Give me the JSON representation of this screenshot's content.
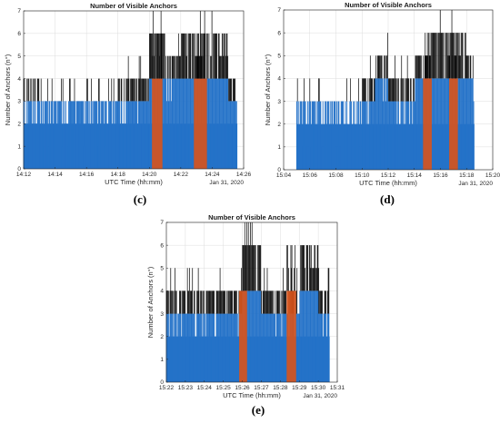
{
  "chart_data": [
    {
      "type": "area",
      "panel_label": "(c)",
      "title": "Number of Visible Anchors",
      "xlabel": "UTC Time (hh:mm)",
      "ylabel": "Number of Anchors (n°)",
      "date_label": "Jan 31, 2020",
      "x_ticks": [
        "14:12",
        "14:14",
        "14:16",
        "14:18",
        "14:20",
        "14:22",
        "14:24",
        "14:26"
      ],
      "y_ticks": [
        "0",
        "1",
        "2",
        "3",
        "4",
        "5",
        "6",
        "7"
      ],
      "ylim": [
        0,
        7
      ],
      "grid": true,
      "series_colors": {
        "base": "#2472c8",
        "highlight": "#d95319",
        "peak": "#000000"
      },
      "series": [
        {
          "x": [
            "14:12",
            "14:13",
            "14:14",
            "14:15",
            "14:16",
            "14:17",
            "14:18",
            "14:19",
            "14:20",
            "14:21",
            "14:22",
            "14:23",
            "14:24",
            "14:25"
          ],
          "values": [
            4,
            3,
            3,
            3,
            3,
            3,
            4,
            4,
            6,
            5,
            6,
            6,
            6,
            4
          ]
        }
      ],
      "highlight_ranges": [
        [
          "14:20:10",
          "14:20:50"
        ],
        [
          "14:22:50",
          "14:23:40"
        ]
      ]
    },
    {
      "type": "area",
      "panel_label": "(d)",
      "title": "Number of Visible Anchors",
      "xlabel": "UTC Time (hh:mm)",
      "ylabel": "Number of Anchors (n°)",
      "date_label": "Jan 31, 2020",
      "x_ticks": [
        "15:04",
        "15:06",
        "15:08",
        "15:10",
        "15:12",
        "15:14",
        "15:16",
        "15:18",
        "15:20"
      ],
      "y_ticks": [
        "0",
        "1",
        "2",
        "3",
        "4",
        "5",
        "6",
        "7"
      ],
      "ylim": [
        0,
        7
      ],
      "grid": true,
      "series_colors": {
        "base": "#2472c8",
        "highlight": "#d95319",
        "peak": "#000000"
      },
      "series": [
        {
          "x": [
            "15:05",
            "15:06",
            "15:07",
            "15:08",
            "15:09",
            "15:10",
            "15:11",
            "15:12",
            "15:13",
            "15:14",
            "15:15",
            "15:16",
            "15:17",
            "15:18"
          ],
          "values": [
            3,
            3,
            3,
            3,
            3,
            4,
            5,
            4,
            4,
            5,
            6,
            6,
            6,
            5
          ]
        }
      ],
      "highlight_ranges": [
        [
          "15:14:40",
          "15:15:20"
        ],
        [
          "15:16:40",
          "15:17:20"
        ]
      ]
    },
    {
      "type": "area",
      "panel_label": "(e)",
      "title": "Number of Visible Anchors",
      "xlabel": "UTC Time (hh:mm)",
      "ylabel": "Number of Anchors (n°)",
      "date_label": "Jan 31, 2020",
      "x_ticks": [
        "15:22",
        "15:23",
        "15:24",
        "15:25",
        "15:26",
        "15:27",
        "15:28",
        "15:29",
        "15:30",
        "15:31"
      ],
      "y_ticks": [
        "0",
        "1",
        "2",
        "3",
        "4",
        "5",
        "6",
        "7"
      ],
      "ylim": [
        0,
        7
      ],
      "grid": true,
      "series_colors": {
        "base": "#2472c8",
        "highlight": "#d95319",
        "peak": "#000000"
      },
      "series": [
        {
          "x": [
            "15:22",
            "15:23",
            "15:24",
            "15:25",
            "15:26",
            "15:27",
            "15:28",
            "15:29",
            "15:30"
          ],
          "values": [
            4,
            4,
            4,
            4,
            6,
            4,
            4,
            6,
            4
          ]
        }
      ],
      "highlight_ranges": [
        [
          "15:25:50",
          "15:26:15"
        ],
        [
          "15:28:20",
          "15:28:50"
        ]
      ]
    }
  ]
}
